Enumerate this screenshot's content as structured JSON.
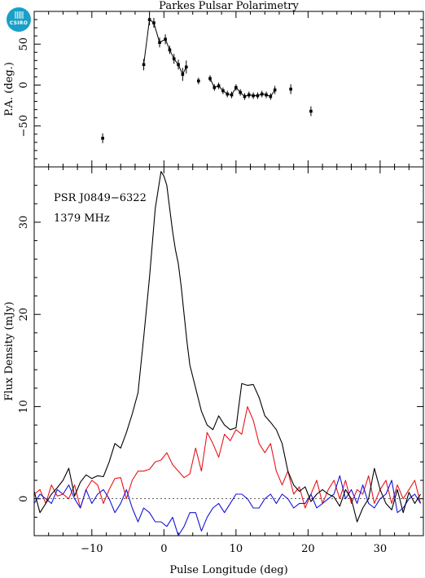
{
  "logo": {
    "text": "CSIRO"
  },
  "chart_data": [
    {
      "type": "scatter",
      "title": "Parkes Pulsar Polarimetry",
      "xlabel": "",
      "ylabel": "P.A. (deg.)",
      "xlim": [
        -18,
        36
      ],
      "ylim": [
        -100,
        90
      ],
      "yticks": [
        -50,
        0,
        50
      ],
      "series": [
        {
          "points": [
            {
              "x": -8.5,
              "y": -65,
              "err": 6
            },
            {
              "x": -2.8,
              "y": 25,
              "err": 7
            },
            {
              "x": -2.0,
              "y": 80,
              "err": 7
            },
            {
              "x": -1.4,
              "y": 76,
              "err": 6
            },
            {
              "x": -0.6,
              "y": 52,
              "err": 6
            },
            {
              "x": 0.2,
              "y": 56,
              "err": 6
            },
            {
              "x": 0.8,
              "y": 43,
              "err": 5
            },
            {
              "x": 1.4,
              "y": 32,
              "err": 6
            },
            {
              "x": 2.0,
              "y": 25,
              "err": 6
            },
            {
              "x": 2.6,
              "y": 13,
              "err": 8
            },
            {
              "x": 3.1,
              "y": 22,
              "err": 8
            },
            {
              "x": 4.8,
              "y": 5,
              "err": 4
            },
            {
              "x": 6.4,
              "y": 8,
              "err": 4
            },
            {
              "x": 7.0,
              "y": -3,
              "err": 4
            },
            {
              "x": 7.6,
              "y": -1,
              "err": 4
            },
            {
              "x": 8.2,
              "y": -7,
              "err": 4
            },
            {
              "x": 8.8,
              "y": -11,
              "err": 4
            },
            {
              "x": 9.4,
              "y": -12,
              "err": 4
            },
            {
              "x": 10.0,
              "y": -3,
              "err": 4
            },
            {
              "x": 10.6,
              "y": -9,
              "err": 4
            },
            {
              "x": 11.2,
              "y": -14,
              "err": 4
            },
            {
              "x": 11.8,
              "y": -12,
              "err": 4
            },
            {
              "x": 12.4,
              "y": -13,
              "err": 4
            },
            {
              "x": 13.0,
              "y": -13,
              "err": 4
            },
            {
              "x": 13.6,
              "y": -11,
              "err": 4
            },
            {
              "x": 14.2,
              "y": -12,
              "err": 4
            },
            {
              "x": 14.8,
              "y": -14,
              "err": 4
            },
            {
              "x": 15.4,
              "y": -6,
              "err": 5
            },
            {
              "x": 17.6,
              "y": -5,
              "err": 6
            },
            {
              "x": 20.4,
              "y": -32,
              "err": 6
            }
          ]
        }
      ]
    },
    {
      "type": "line",
      "title": "",
      "xlabel": "Pulse Longitude (deg)",
      "ylabel": "Flux Density (mJy)",
      "xlim": [
        -18,
        36
      ],
      "ylim": [
        -4,
        36
      ],
      "xticks": [
        -10,
        0,
        10,
        20,
        30
      ],
      "yticks": [
        0,
        10,
        20,
        30
      ],
      "annotations": [
        "PSR J0849−6322",
        "1379 MHz"
      ],
      "series": [
        {
          "name": "",
          "color": "#000000",
          "x": [
            -18,
            -17.2,
            -16.4,
            -15.6,
            -14.8,
            -14,
            -13.2,
            -12.4,
            -11.6,
            -10.8,
            -10,
            -9.2,
            -8.4,
            -7.6,
            -6.8,
            -6,
            -5.2,
            -4.4,
            -3.6,
            -2.8,
            -2,
            -1.2,
            -0.4,
            0,
            0.4,
            0.8,
            1.2,
            1.6,
            2,
            2.4,
            2.8,
            3.2,
            3.6,
            4.4,
            5.2,
            6,
            6.8,
            7.6,
            8.4,
            9.2,
            10,
            10.8,
            11.6,
            12.4,
            13.2,
            14,
            14.8,
            15.6,
            16.4,
            17.2,
            18,
            18.8,
            19.6,
            20.4,
            21.2,
            22,
            22.8,
            23.6,
            24.4,
            25.2,
            26,
            26.8,
            27.6,
            28.4,
            29.2,
            30,
            30.8,
            31.6,
            32.4,
            33.2,
            34,
            34.8,
            35.6
          ],
          "y": [
            0.8,
            -1.5,
            -0.5,
            0.5,
            1.2,
            2.0,
            3.3,
            0.3,
            1.8,
            2.6,
            2.2,
            2.5,
            2.4,
            4.0,
            6.0,
            5.5,
            7.2,
            9.2,
            11.5,
            17.5,
            24.0,
            31.5,
            35.5,
            35.0,
            34.0,
            31.5,
            29.0,
            27.0,
            25.5,
            23.0,
            20.0,
            17.0,
            14.5,
            12.0,
            9.5,
            8.0,
            7.5,
            9.0,
            8.0,
            7.5,
            7.7,
            12.5,
            12.3,
            12.4,
            11.0,
            9.0,
            8.3,
            7.5,
            6.0,
            3.0,
            1.5,
            0.8,
            1.3,
            -0.3,
            0.5,
            1.0,
            0.5,
            0.2,
            -0.8,
            1.0,
            0.0,
            -2.5,
            -1.0,
            0.0,
            3.3,
            1.0,
            -0.5,
            -1.2,
            1.0,
            -1.5,
            0.7,
            -0.5,
            0.5
          ]
        },
        {
          "name": "",
          "color": "#e8141c",
          "x": [
            -18,
            -17.2,
            -16.4,
            -15.6,
            -14.8,
            -14,
            -13.2,
            -12.4,
            -11.6,
            -10.8,
            -10,
            -9.2,
            -8.4,
            -7.6,
            -6.8,
            -6,
            -5.2,
            -4.4,
            -3.6,
            -2.8,
            -2,
            -1.2,
            -0.4,
            0.4,
            1.2,
            2,
            2.8,
            3.6,
            4.4,
            5.2,
            6,
            6.8,
            7.6,
            8.4,
            9.2,
            10,
            10.8,
            11.6,
            12.4,
            13.2,
            14,
            14.8,
            15.6,
            16.4,
            17.2,
            18,
            18.8,
            19.6,
            20.4,
            21.2,
            22,
            22.8,
            23.6,
            24.4,
            25.2,
            26,
            26.8,
            27.6,
            28.4,
            29.2,
            30,
            30.8,
            31.6,
            32.4,
            33.2,
            34,
            34.8,
            35.6
          ],
          "y": [
            0.5,
            1.0,
            -0.5,
            1.5,
            0.3,
            0.5,
            0.0,
            1.5,
            -1.0,
            1.0,
            2.0,
            1.5,
            -0.5,
            1.0,
            2.2,
            2.3,
            0.0,
            2.0,
            3.0,
            3.0,
            3.2,
            4.0,
            4.2,
            5.0,
            3.7,
            3.0,
            2.3,
            2.7,
            5.5,
            3.0,
            7.2,
            6.0,
            4.5,
            7.0,
            6.3,
            7.5,
            7.0,
            10.0,
            8.5,
            6.0,
            5.0,
            6.0,
            3.0,
            1.5,
            3.0,
            0.5,
            1.3,
            -1.0,
            0.5,
            2.0,
            -0.5,
            1.0,
            2.0,
            0.0,
            2.0,
            -0.5,
            1.0,
            0.5,
            2.5,
            -0.5,
            1.0,
            2.0,
            -0.5,
            1.5,
            0.0,
            1.0,
            2.0,
            -0.5
          ]
        },
        {
          "name": "",
          "color": "#1414d8",
          "x": [
            -18,
            -17.2,
            -16.4,
            -15.6,
            -14.8,
            -14,
            -13.2,
            -12.4,
            -11.6,
            -10.8,
            -10,
            -9.2,
            -8.4,
            -7.6,
            -6.8,
            -6,
            -5.2,
            -4.4,
            -3.6,
            -2.8,
            -2,
            -1.2,
            -0.4,
            0.4,
            1.2,
            2,
            2.8,
            3.6,
            4.4,
            5.2,
            6,
            6.8,
            7.6,
            8.4,
            9.2,
            10,
            10.8,
            11.6,
            12.4,
            13.2,
            14,
            14.8,
            15.6,
            16.4,
            17.2,
            18,
            18.8,
            19.6,
            20.4,
            21.2,
            22,
            22.8,
            23.6,
            24.4,
            25.2,
            26,
            26.8,
            27.6,
            28.4,
            29.2,
            30,
            30.8,
            31.6,
            32.4,
            33.2,
            34,
            34.8,
            35.6
          ],
          "y": [
            -0.5,
            0.5,
            0.0,
            -0.5,
            1.0,
            0.5,
            1.5,
            0.0,
            -1.0,
            1.0,
            -0.5,
            0.5,
            1.0,
            0.0,
            -1.5,
            -0.5,
            1.0,
            -1.0,
            -2.5,
            -1.0,
            -1.5,
            -2.5,
            -2.5,
            -3.0,
            -2.0,
            -4.0,
            -3.0,
            -1.5,
            -1.5,
            -3.5,
            -2.0,
            -1.0,
            -0.5,
            -1.5,
            -0.5,
            0.5,
            0.5,
            0.0,
            -1.0,
            -1.0,
            0.0,
            0.5,
            -0.5,
            0.5,
            0.0,
            -1.0,
            -0.5,
            -0.5,
            0.5,
            -1.0,
            -0.5,
            0.0,
            0.5,
            2.5,
            0.0,
            1.0,
            -0.5,
            1.5,
            -0.5,
            -1.0,
            0.0,
            0.5,
            2.0,
            -1.5,
            -1.0,
            0.0,
            0.5,
            -0.5
          ]
        }
      ]
    }
  ]
}
